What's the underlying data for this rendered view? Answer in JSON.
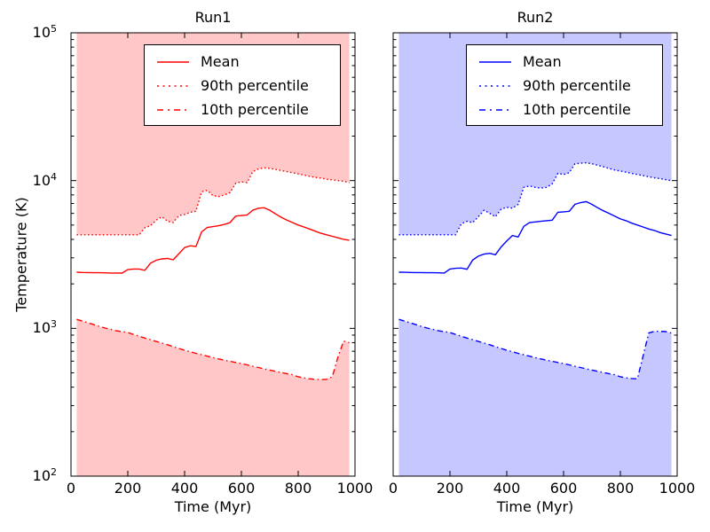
{
  "figure": {
    "background": "#ffffff",
    "frame_color": "#000000"
  },
  "chart_data": [
    {
      "id": "run1",
      "type": "line",
      "title": "Run1",
      "xlabel": "Time (Myr)",
      "ylabel": "Temperature (K)",
      "yscale": "log",
      "grid": false,
      "xlim": [
        0,
        1000
      ],
      "ylim": [
        100,
        100000
      ],
      "x_ticks": [
        0,
        200,
        400,
        600,
        800,
        1000
      ],
      "y_tick_values": [
        100,
        1000,
        10000,
        100000
      ],
      "y_tick_labels": [
        "10^2",
        "10^3",
        "10^4",
        "10^5"
      ],
      "line_color": "#ff0000",
      "band_fill": "rgba(255,0,0,0.22)",
      "legend_position": "upper left",
      "shading": "regions above 90th percentile and below 10th percentile are filled",
      "x": [
        20,
        40,
        60,
        80,
        100,
        120,
        140,
        160,
        180,
        200,
        220,
        240,
        260,
        280,
        300,
        320,
        340,
        360,
        380,
        400,
        420,
        440,
        460,
        480,
        500,
        520,
        540,
        560,
        580,
        600,
        620,
        640,
        660,
        680,
        700,
        720,
        740,
        760,
        780,
        800,
        820,
        840,
        860,
        880,
        900,
        920,
        940,
        960,
        980
      ],
      "series": [
        {
          "key": "mean",
          "name": "Mean",
          "style": "solid",
          "values": [
            2400,
            2390,
            2385,
            2380,
            2380,
            2375,
            2370,
            2370,
            2365,
            2500,
            2520,
            2520,
            2470,
            2760,
            2890,
            2950,
            2970,
            2910,
            3200,
            3520,
            3620,
            3580,
            4500,
            4820,
            4880,
            4950,
            5050,
            5200,
            5750,
            5800,
            5850,
            6300,
            6500,
            6550,
            6300,
            5950,
            5650,
            5400,
            5200,
            5000,
            4850,
            4700,
            4550,
            4400,
            4300,
            4200,
            4100,
            4000,
            3950
          ]
        },
        {
          "key": "p90",
          "name": "90th percentile",
          "style": "dotted",
          "values": [
            4300,
            4300,
            4300,
            4300,
            4300,
            4300,
            4300,
            4300,
            4300,
            4300,
            4300,
            4300,
            4800,
            4950,
            5400,
            5700,
            5300,
            5200,
            5800,
            5900,
            6100,
            6200,
            8400,
            8600,
            7900,
            7800,
            8000,
            8300,
            9600,
            9800,
            9700,
            11500,
            12000,
            12200,
            12100,
            11900,
            11700,
            11500,
            11300,
            11100,
            10900,
            10700,
            10500,
            10400,
            10200,
            10100,
            10000,
            9900,
            9700
          ]
        },
        {
          "key": "p10",
          "name": "10th percentile",
          "style": "dashdot",
          "values": [
            1150,
            1120,
            1090,
            1060,
            1030,
            1005,
            985,
            962,
            950,
            938,
            910,
            885,
            860,
            838,
            816,
            795,
            775,
            752,
            731,
            711,
            694,
            678,
            663,
            648,
            634,
            621,
            608,
            598,
            588,
            578,
            566,
            554,
            543,
            532,
            522,
            512,
            503,
            494,
            486,
            470,
            462,
            456,
            452,
            450,
            452,
            470,
            640,
            820,
            800
          ]
        }
      ]
    },
    {
      "id": "run2",
      "type": "line",
      "title": "Run2",
      "xlabel": "Time (Myr)",
      "ylabel": "Temperature (K)",
      "yscale": "log",
      "grid": false,
      "xlim": [
        0,
        1000
      ],
      "ylim": [
        100,
        100000
      ],
      "x_ticks": [
        0,
        200,
        400,
        600,
        800,
        1000
      ],
      "y_tick_values": [
        100,
        1000,
        10000,
        100000
      ],
      "y_tick_labels": [
        "10^2",
        "10^3",
        "10^4",
        "10^5"
      ],
      "line_color": "#0000ff",
      "band_fill": "rgba(0,0,255,0.22)",
      "legend_position": "upper left",
      "shading": "regions above 90th percentile and below 10th percentile are filled",
      "x": [
        20,
        40,
        60,
        80,
        100,
        120,
        140,
        160,
        180,
        200,
        220,
        240,
        260,
        280,
        300,
        320,
        340,
        360,
        380,
        400,
        420,
        440,
        460,
        480,
        500,
        520,
        540,
        560,
        580,
        600,
        620,
        640,
        660,
        680,
        700,
        720,
        740,
        760,
        780,
        800,
        820,
        840,
        860,
        880,
        900,
        920,
        940,
        960,
        980
      ],
      "series": [
        {
          "key": "mean",
          "name": "Mean",
          "style": "solid",
          "values": [
            2400,
            2395,
            2390,
            2385,
            2385,
            2380,
            2380,
            2375,
            2370,
            2520,
            2550,
            2560,
            2510,
            2900,
            3080,
            3180,
            3220,
            3150,
            3550,
            3900,
            4250,
            4150,
            4900,
            5200,
            5250,
            5300,
            5350,
            5400,
            6100,
            6150,
            6200,
            6900,
            7100,
            7200,
            6900,
            6550,
            6250,
            6000,
            5750,
            5500,
            5350,
            5150,
            5000,
            4850,
            4700,
            4600,
            4450,
            4350,
            4250
          ]
        },
        {
          "key": "p90",
          "name": "90th percentile",
          "style": "dotted",
          "values": [
            4300,
            4300,
            4300,
            4300,
            4300,
            4300,
            4300,
            4300,
            4300,
            4300,
            4300,
            5100,
            5300,
            5200,
            5700,
            6300,
            6000,
            5700,
            6400,
            6600,
            6500,
            6900,
            9000,
            9200,
            9000,
            8900,
            9000,
            9500,
            11200,
            11000,
            11300,
            13000,
            13100,
            13200,
            13000,
            12700,
            12400,
            12100,
            11800,
            11600,
            11400,
            11200,
            11000,
            10800,
            10600,
            10450,
            10300,
            10150,
            10000
          ]
        },
        {
          "key": "p10",
          "name": "10th percentile",
          "style": "dashdot",
          "values": [
            1150,
            1120,
            1090,
            1060,
            1030,
            1005,
            985,
            962,
            950,
            938,
            910,
            885,
            860,
            838,
            816,
            795,
            775,
            752,
            731,
            711,
            694,
            678,
            663,
            648,
            634,
            621,
            608,
            598,
            588,
            578,
            566,
            554,
            543,
            532,
            522,
            512,
            503,
            494,
            486,
            470,
            462,
            458,
            456,
            650,
            930,
            955,
            955,
            950,
            930
          ]
        }
      ]
    }
  ]
}
